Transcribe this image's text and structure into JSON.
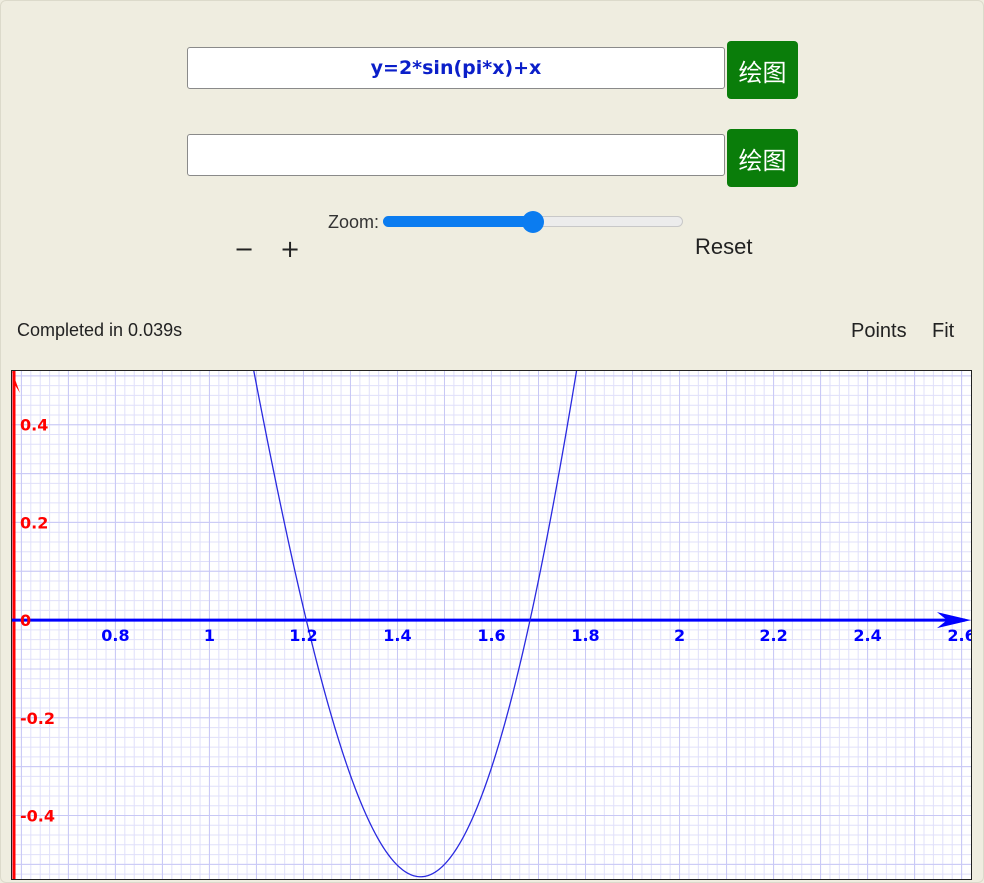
{
  "inputs": [
    {
      "value": "y=2*sin(pi*x)+x",
      "button_label": "绘图"
    },
    {
      "value": "",
      "button_label": "绘图"
    }
  ],
  "zoom": {
    "label": "Zoom:",
    "value": 0.5,
    "minus": "−",
    "plus": "+",
    "reset": "Reset"
  },
  "status": "Completed in 0.039s",
  "view_buttons": {
    "points": "Points",
    "fit": "Fit"
  },
  "colors": {
    "background": "#efede0",
    "button": "#0a7d0a",
    "curve": "#2a2ae0",
    "x_axis": "#0000ff",
    "y_axis": "#ff0000",
    "grid": "#c8c8f5"
  },
  "chart_data": {
    "type": "line",
    "function": "2*sin(pi*x)+x",
    "xlim": [
      0.58,
      2.62
    ],
    "ylim": [
      -0.53,
      0.51
    ],
    "grid": true,
    "x_ticks": [
      {
        "value": 0.8,
        "label": "0.8"
      },
      {
        "value": 1.0,
        "label": "1"
      },
      {
        "value": 1.2,
        "label": "1.2"
      },
      {
        "value": 1.4,
        "label": "1.4"
      },
      {
        "value": 1.6,
        "label": "1.6"
      },
      {
        "value": 1.8,
        "label": "1.8"
      },
      {
        "value": 2.0,
        "label": "2"
      },
      {
        "value": 2.2,
        "label": "2.2"
      },
      {
        "value": 2.4,
        "label": "2.4"
      },
      {
        "value": 2.6,
        "label": "2.6"
      }
    ],
    "y_ticks": [
      {
        "value": 0.4,
        "label": "0.4"
      },
      {
        "value": 0.2,
        "label": "0.2"
      },
      {
        "value": 0.0,
        "label": "0"
      },
      {
        "value": -0.2,
        "label": "-0.2"
      },
      {
        "value": -0.4,
        "label": "-0.4"
      }
    ]
  }
}
